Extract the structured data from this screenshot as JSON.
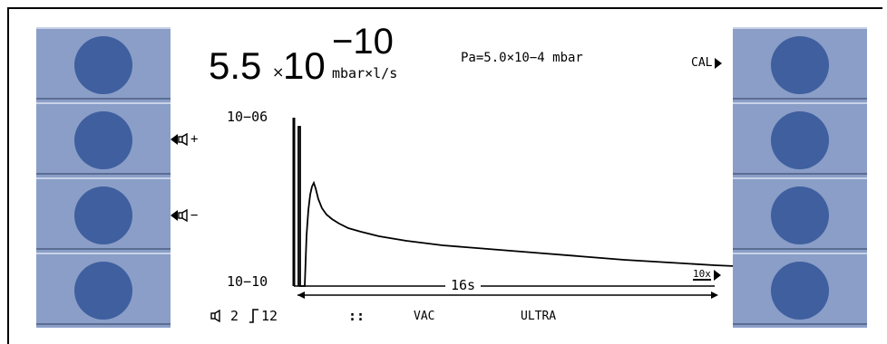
{
  "colors": {
    "panel": "#8a9ec7",
    "button": "#3f5f9f",
    "screen": "#ffffff",
    "ink": "#000000"
  },
  "readout": {
    "mantissa": "5.5",
    "times": "×",
    "base": "10",
    "exponent": "−10",
    "unit": "mbar×l/s"
  },
  "pa_readout": "Pa=5.0×10−4 mbar",
  "cal_label": "CAL",
  "volume_up_label": "+",
  "volume_down_label": "−",
  "axis": {
    "y_top_label": "10−06",
    "y_bottom_label": "10−10",
    "time_span_label": "16s",
    "scale_label": "10x"
  },
  "status_bar": {
    "volume_value": "2",
    "trigger_value": "12",
    "separator_glyph": "::",
    "mode_label": "VAC",
    "sensitivity_label": "ULTRA"
  },
  "left_buttons": [
    {
      "icon": "circle-button-icon"
    },
    {
      "icon": "circle-button-icon"
    },
    {
      "icon": "circle-button-icon"
    },
    {
      "icon": "circle-button-icon"
    }
  ],
  "right_buttons": [
    {
      "icon": "circle-button-icon"
    },
    {
      "icon": "circle-button-icon"
    },
    {
      "icon": "circle-button-icon"
    },
    {
      "icon": "circle-button-icon"
    }
  ]
}
